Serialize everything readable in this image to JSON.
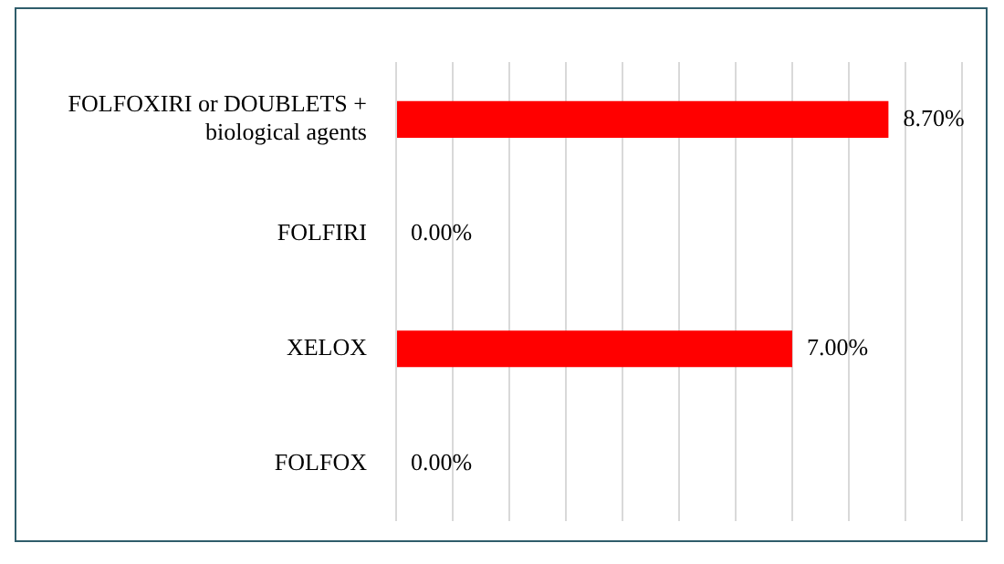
{
  "chart_data": {
    "type": "bar",
    "orientation": "horizontal",
    "categories": [
      "FOLFOXIRI or DOUBLETS + biological agents",
      "FOLFIRI",
      "XELOX",
      "FOLFOX"
    ],
    "values": [
      8.7,
      0,
      7,
      0
    ],
    "value_labels": [
      "8.70%",
      "0.00%",
      "7.00%",
      "0.00%"
    ],
    "color": "#ff0000",
    "xlim": [
      0,
      10
    ],
    "xticks": [
      {
        "value": 0,
        "label": null
      },
      {
        "value": 1,
        "label": null
      },
      {
        "value": 2,
        "label": null
      },
      {
        "value": 3,
        "label": null
      },
      {
        "value": 4,
        "label": null
      },
      {
        "value": 5,
        "label": null
      },
      {
        "value": 6,
        "label": null
      },
      {
        "value": 7,
        "label": null
      },
      {
        "value": 8,
        "label": null
      },
      {
        "value": 9,
        "label": null
      },
      {
        "value": 10,
        "label": null
      }
    ],
    "grid": "x",
    "legend": false,
    "tick_labels": "y"
  }
}
